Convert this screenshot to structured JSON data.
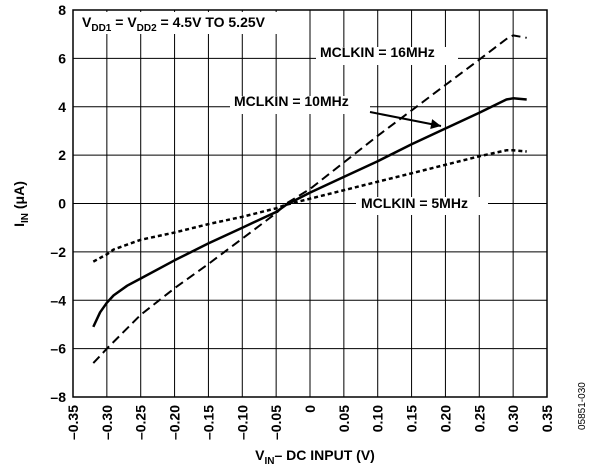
{
  "chart_data": {
    "type": "line",
    "title": "",
    "condition_label": {
      "v": "V",
      "sub1": "DD1",
      "mid": " = V",
      "sub2": "DD2",
      "tail": " = 4.5V TO 5.25V"
    },
    "xlabel": {
      "main": "V",
      "sub": "IN",
      "tail": "– DC INPUT (V)"
    },
    "ylabel": {
      "main": "I",
      "sub": "IN",
      "tail": " (μA)"
    },
    "xlim": [
      -0.35,
      0.35
    ],
    "ylim": [
      -8,
      8
    ],
    "x_ticks": [
      -0.35,
      -0.3,
      -0.25,
      -0.2,
      -0.15,
      -0.1,
      -0.05,
      0,
      0.05,
      0.1,
      0.15,
      0.2,
      0.25,
      0.3,
      0.35
    ],
    "x_tick_labels": [
      "–0.35",
      "–0.30",
      "–0.25",
      "–0.20",
      "–0.15",
      "–0.10",
      "–0.05",
      "0",
      "0.05",
      "0.10",
      "0.15",
      "0.20",
      "0.25",
      "0.30",
      "0.35"
    ],
    "y_ticks": [
      -8,
      -6,
      -4,
      -2,
      0,
      2,
      4,
      6,
      8
    ],
    "y_tick_labels": [
      "–8",
      "–6",
      "–4",
      "–2",
      "0",
      "2",
      "4",
      "6",
      "8"
    ],
    "grid": true,
    "series": [
      {
        "name": "MCLKIN = 16MHz",
        "style": "long-dash",
        "x": [
          -0.32,
          -0.3,
          -0.25,
          -0.2,
          -0.15,
          -0.1,
          -0.05,
          -0.035,
          0,
          0.05,
          0.1,
          0.15,
          0.2,
          0.25,
          0.29,
          0.3,
          0.32
        ],
        "y": [
          -6.6,
          -6.0,
          -4.6,
          -3.5,
          -2.5,
          -1.45,
          -0.4,
          0.0,
          0.6,
          1.7,
          2.8,
          3.85,
          4.9,
          5.95,
          6.8,
          6.95,
          6.85
        ]
      },
      {
        "name": "MCLKIN = 10MHz",
        "style": "solid",
        "x": [
          -0.32,
          -0.31,
          -0.3,
          -0.29,
          -0.27,
          -0.25,
          -0.2,
          -0.15,
          -0.1,
          -0.05,
          -0.035,
          0,
          0.05,
          0.1,
          0.15,
          0.2,
          0.25,
          0.29,
          0.3,
          0.32
        ],
        "y": [
          -5.1,
          -4.5,
          -4.1,
          -3.8,
          -3.4,
          -3.1,
          -2.35,
          -1.65,
          -1.0,
          -0.35,
          -0.05,
          0.45,
          1.1,
          1.75,
          2.45,
          3.1,
          3.75,
          4.3,
          4.35,
          4.3
        ]
      },
      {
        "name": "MCLKIN = 5MHz",
        "style": "short-dash",
        "x": [
          -0.32,
          -0.3,
          -0.29,
          -0.25,
          -0.2,
          -0.15,
          -0.1,
          -0.05,
          -0.035,
          0,
          0.05,
          0.1,
          0.15,
          0.2,
          0.25,
          0.29,
          0.3,
          0.32
        ],
        "y": [
          -2.4,
          -2.1,
          -1.9,
          -1.5,
          -1.2,
          -0.85,
          -0.55,
          -0.2,
          -0.05,
          0.2,
          0.55,
          0.9,
          1.25,
          1.6,
          1.95,
          2.2,
          2.2,
          2.15
        ]
      }
    ],
    "annotations": [
      {
        "text": "MCLKIN = 16MHz",
        "series": 0
      },
      {
        "text": "MCLKIN = 10MHz",
        "series": 1
      },
      {
        "text": "MCLKIN = 5MHz",
        "series": 2
      }
    ],
    "figure_code": "05851-030"
  }
}
